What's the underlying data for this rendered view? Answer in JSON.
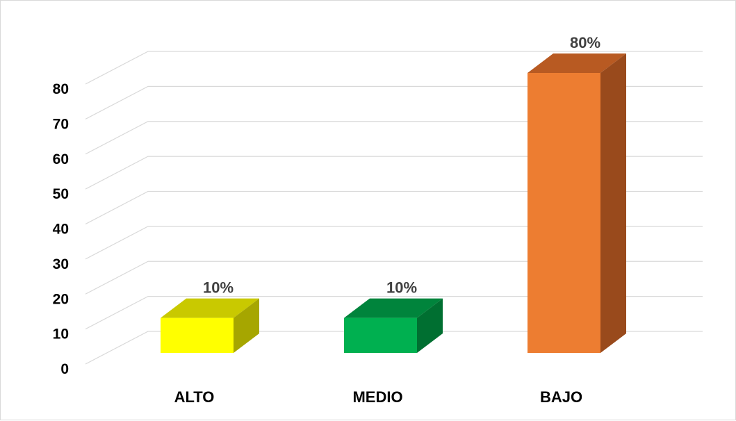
{
  "chart_data": {
    "type": "bar",
    "style": "3d-column",
    "categories": [
      "ALTO",
      "MEDIO",
      "BAJO"
    ],
    "values": [
      10,
      10,
      80
    ],
    "data_labels": [
      "10%",
      "10%",
      "80%"
    ],
    "ylim": [
      0,
      80
    ],
    "yticks": [
      "0",
      "10",
      "20",
      "30",
      "40",
      "50",
      "60",
      "70",
      "80"
    ],
    "grid": true,
    "legend": "none",
    "colors": {
      "ALTO": {
        "front": "#ffff00",
        "top": "#c9c900",
        "side": "#a6a600"
      },
      "MEDIO": {
        "front": "#00b050",
        "top": "#00843c",
        "side": "#006f31"
      },
      "BAJO": {
        "front": "#ed7d31",
        "top": "#b85a22",
        "side": "#994a1c"
      }
    }
  }
}
